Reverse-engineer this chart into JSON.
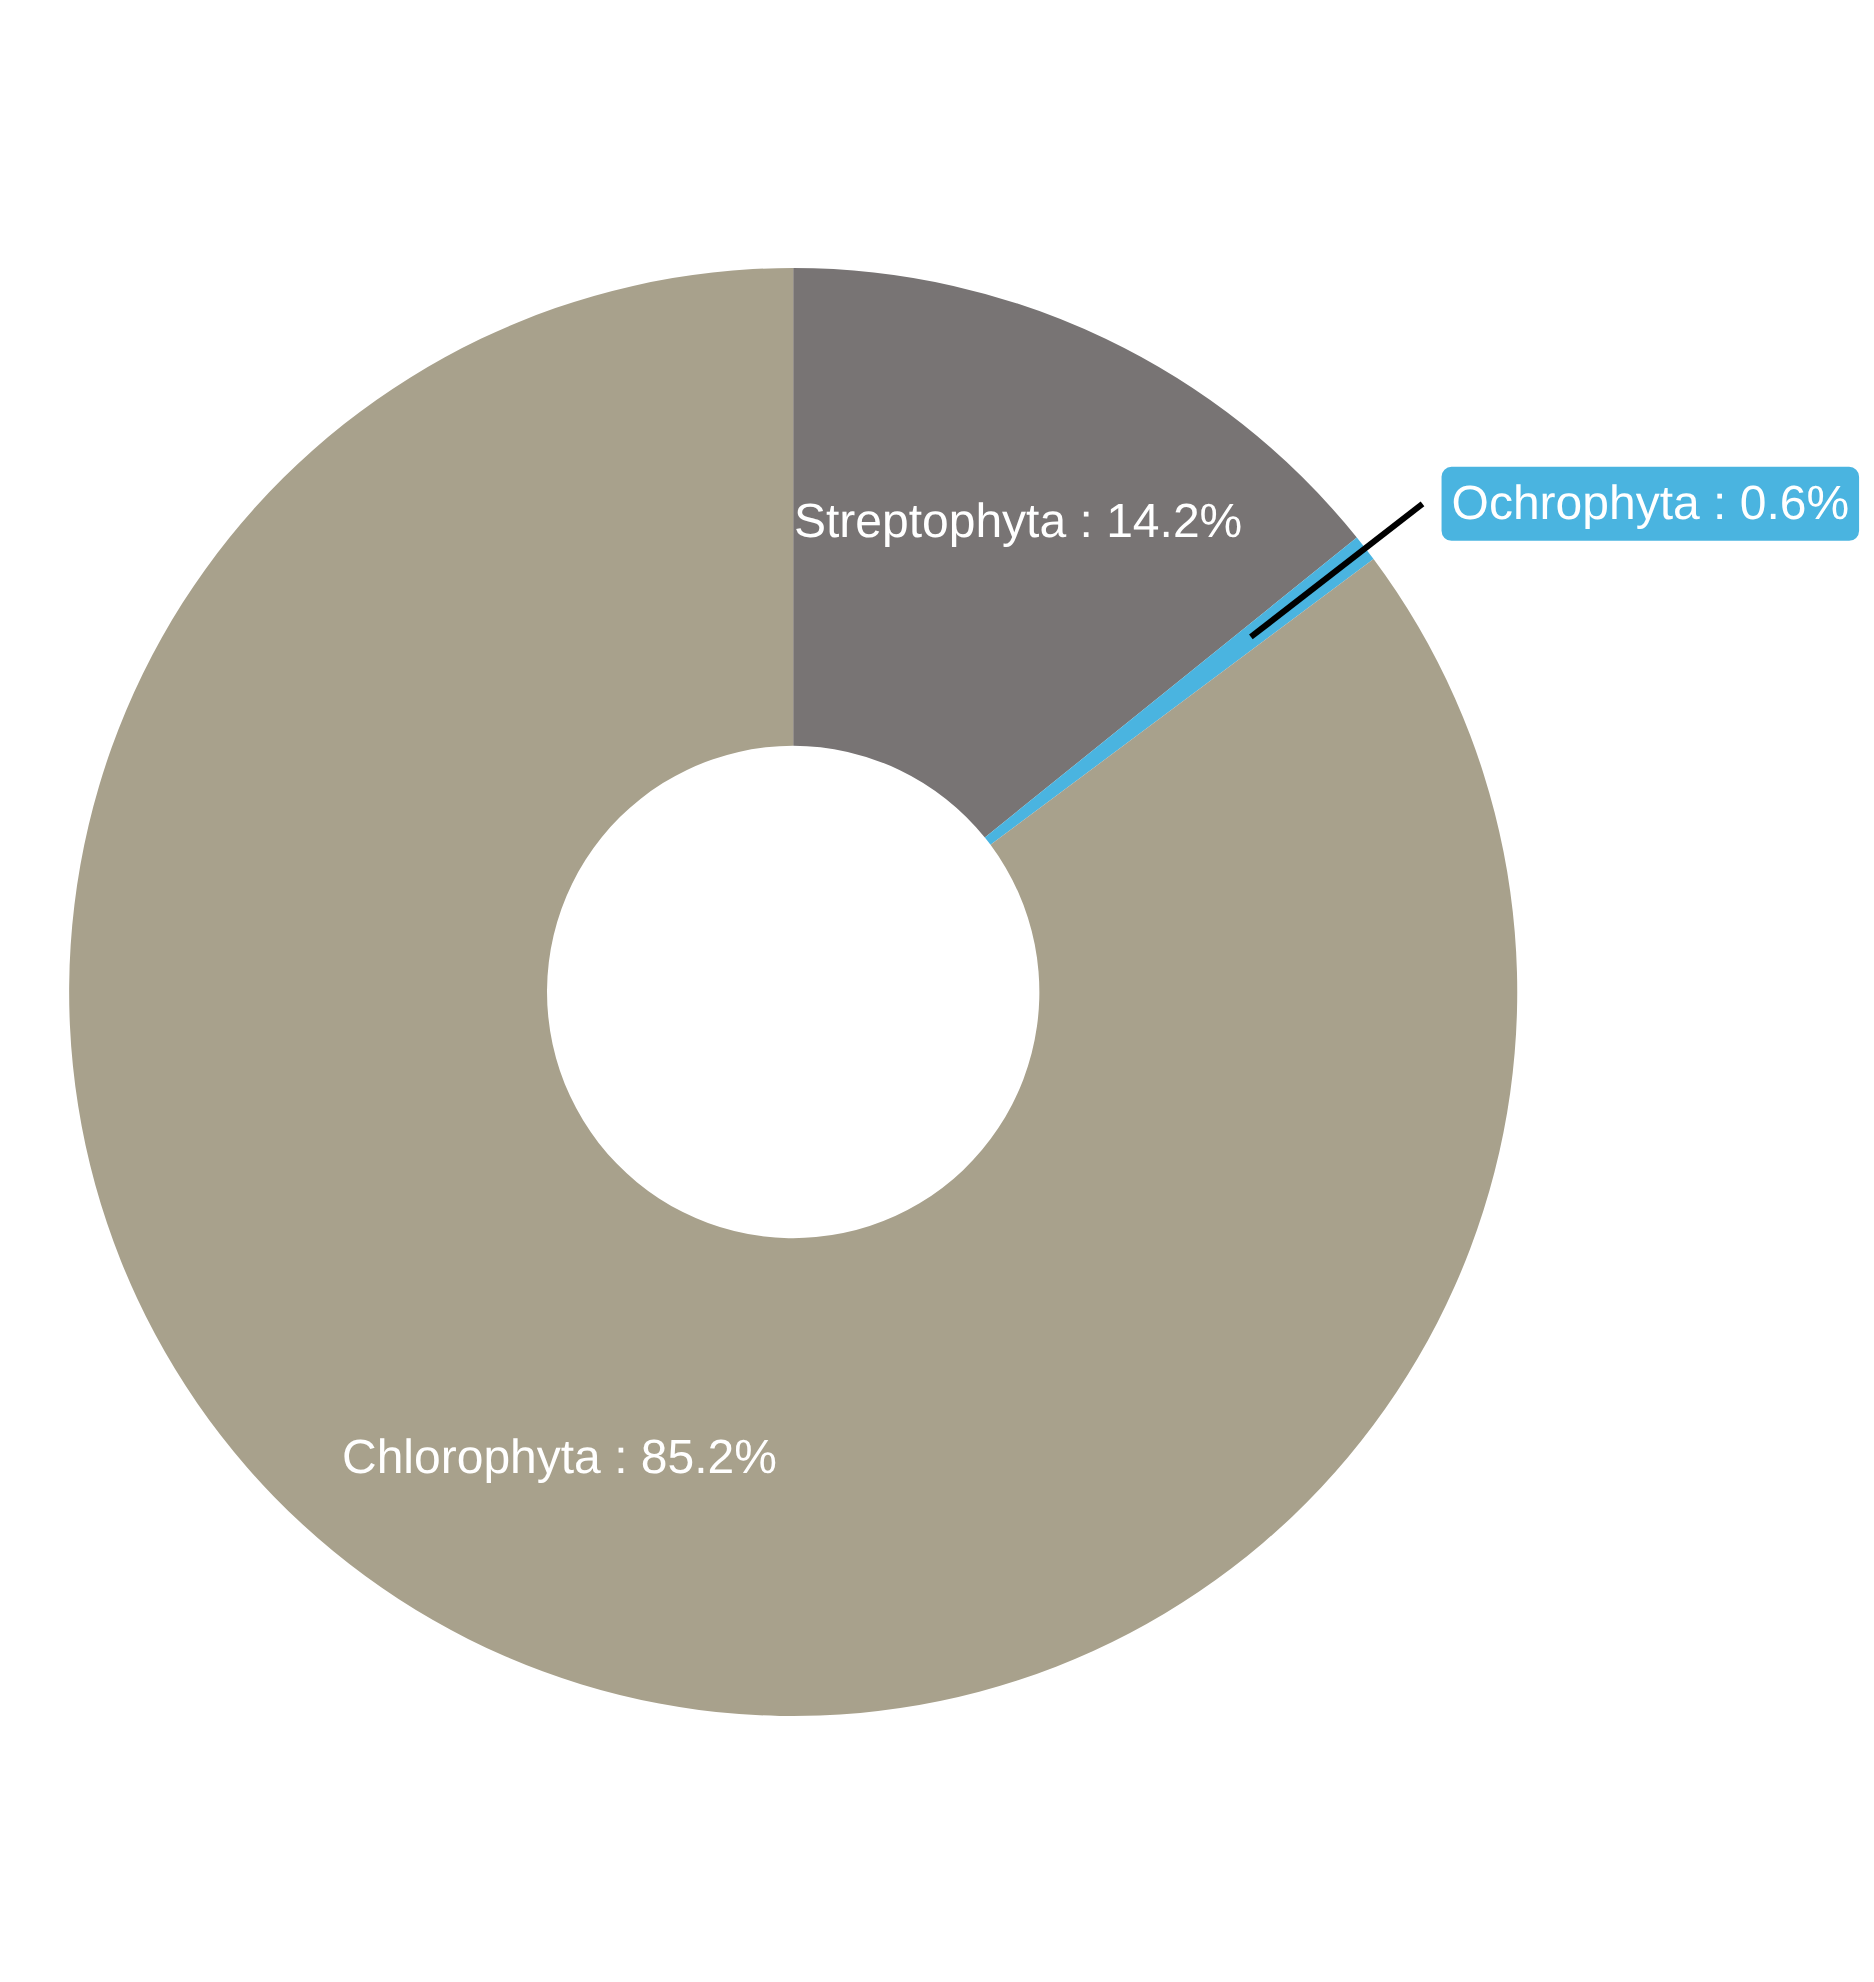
{
  "chart_data": {
    "type": "donut",
    "categories": [
      "Streptophyta",
      "Ochrophyta",
      "Chlorophyta"
    ],
    "values": [
      14.2,
      0.6,
      85.2
    ],
    "colors": [
      "#787474",
      "#4ab4e0",
      "#a8a18c"
    ],
    "value_labels": [
      "14.2%",
      "0.6%",
      "85.2%"
    ]
  }
}
